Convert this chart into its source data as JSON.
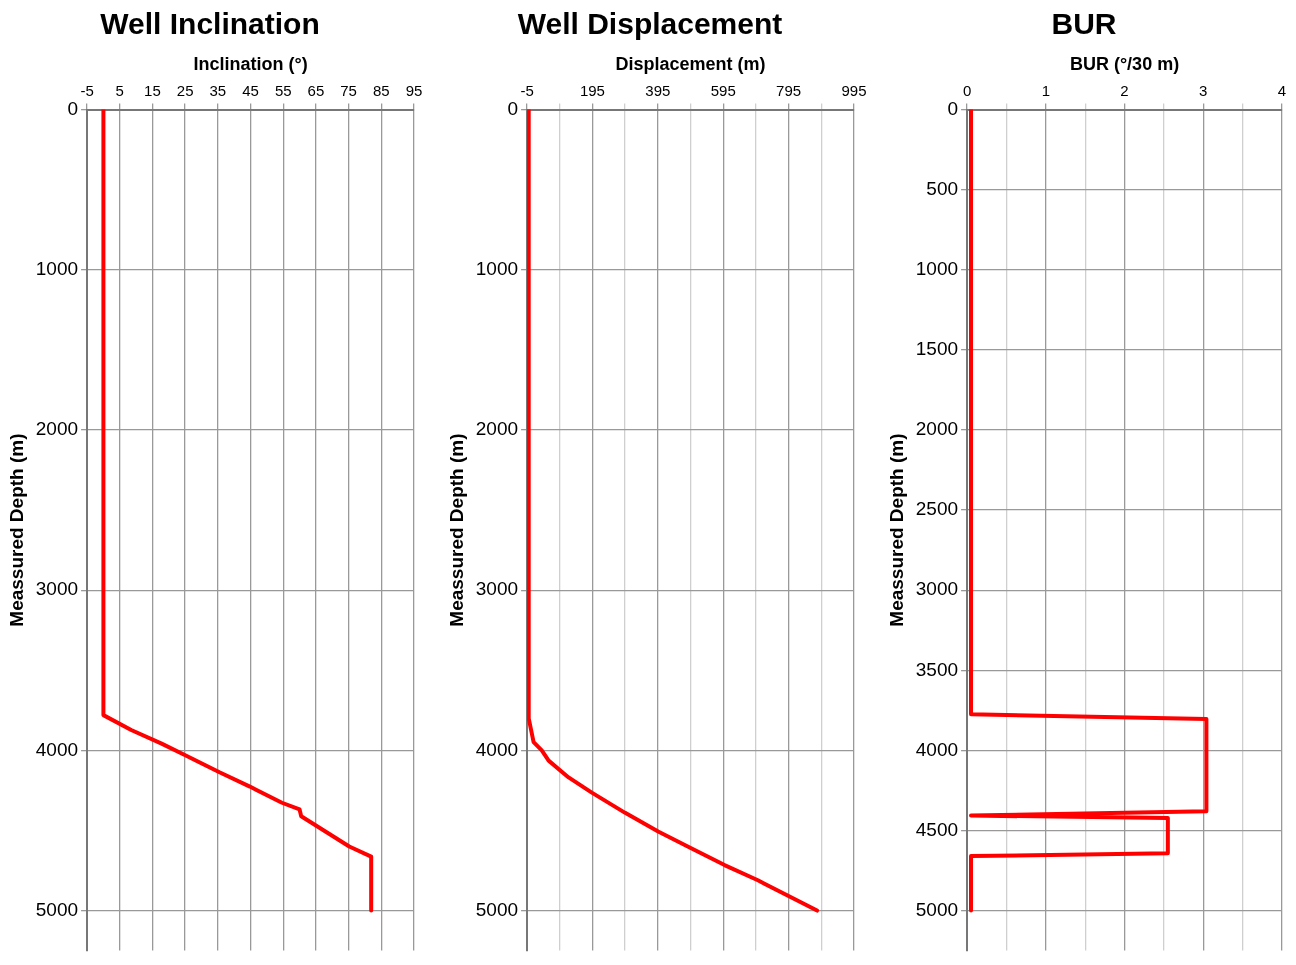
{
  "chart_data": [
    {
      "type": "line",
      "title": "Well Inclination",
      "xlabel": "Inclination (°)",
      "ylabel": "Meassured Depth (m)",
      "xlim": [
        -5,
        95
      ],
      "xticks": [
        -5,
        5,
        15,
        25,
        35,
        45,
        55,
        65,
        75,
        85,
        95
      ],
      "ylim": [
        5250,
        0
      ],
      "yticks": [
        0,
        1000,
        2000,
        3000,
        4000,
        5000
      ],
      "grid": true,
      "marker": "none",
      "line_style": "solid",
      "series": [
        {
          "color": "#ff0000",
          "x": [
            0,
            0,
            8.5,
            17.8,
            25.2,
            35.5,
            44.8,
            54.6,
            60,
            60.5,
            75.2,
            81.9,
            81.9
          ],
          "values": [
            0,
            3780,
            3873,
            3958,
            4032,
            4137,
            4226,
            4327,
            4369,
            4411,
            4600,
            4663,
            5000
          ]
        }
      ]
    },
    {
      "type": "line",
      "title": "Well Displacement",
      "xlabel": "Displacement (m)",
      "ylabel": "Meassured Depth (m)",
      "xlim": [
        -5,
        995
      ],
      "xticks": [
        -5,
        {
          "value": 95,
          "label": null
        },
        195,
        {
          "value": 295,
          "label": null
        },
        395,
        {
          "value": 495,
          "label": null
        },
        595,
        {
          "value": 695,
          "label": null
        },
        795,
        {
          "value": 895,
          "label": null
        },
        995
      ],
      "ylim": [
        5250,
        0
      ],
      "yticks": [
        0,
        1000,
        2000,
        3000,
        4000,
        5000
      ],
      "grid": true,
      "marker": "none",
      "line_style": "solid",
      "series": [
        {
          "color": "#ff0000",
          "x": [
            0,
            0,
            15,
            40,
            61,
            122,
            193,
            295,
            396,
            497,
            599,
            701,
            882
          ],
          "values": [
            0,
            3800,
            3948,
            4000,
            4064,
            4169,
            4264,
            4390,
            4506,
            4611,
            4716,
            4811,
            5000
          ]
        }
      ]
    },
    {
      "type": "line",
      "title": "BUR",
      "xlabel": "BUR (°/30 m)",
      "ylabel": "Meassured Depth (m)",
      "xlim": [
        0,
        4
      ],
      "xticks": [
        0,
        {
          "value": 0.5,
          "label": null
        },
        1,
        {
          "value": 1.5,
          "label": null
        },
        2,
        {
          "value": 2.5,
          "label": null
        },
        3,
        {
          "value": 3.5,
          "label": null
        },
        4
      ],
      "ylim": [
        5250,
        0
      ],
      "yticks": [
        0,
        500,
        1000,
        1500,
        2000,
        2500,
        3000,
        3500,
        4000,
        4500,
        5000
      ],
      "grid": true,
      "marker": "none",
      "line_style": "solid",
      "series": [
        {
          "color": "#ff0000",
          "x": [
            0.05,
            0.05,
            3.04,
            3.04,
            0.05,
            2.55,
            2.55,
            0.05,
            0.05
          ],
          "values": [
            0,
            3775,
            3804,
            4380,
            4407,
            4422,
            4643,
            4660,
            5000
          ]
        }
      ]
    }
  ]
}
